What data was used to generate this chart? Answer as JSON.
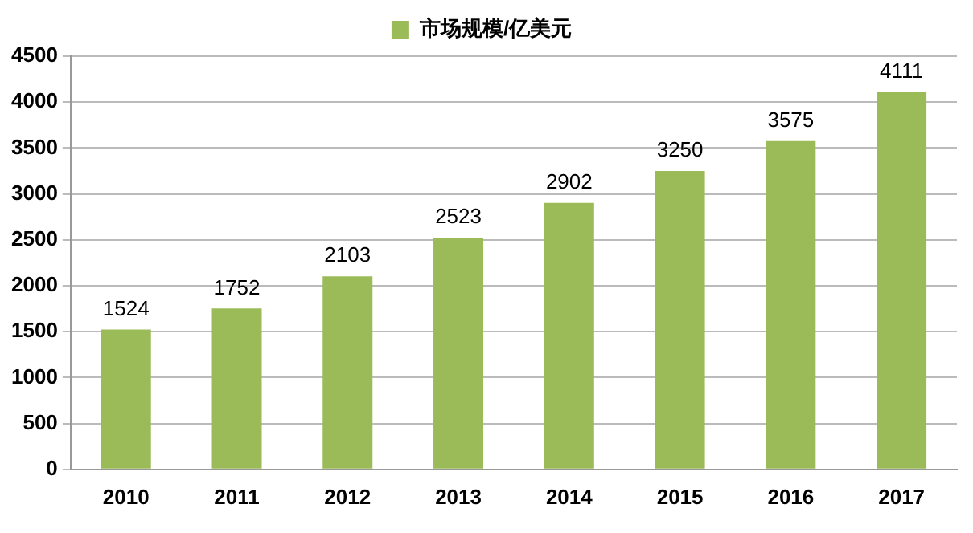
{
  "chart_data": {
    "type": "bar",
    "categories": [
      "2010",
      "2011",
      "2012",
      "2013",
      "2014",
      "2015",
      "2016",
      "2017"
    ],
    "series": [
      {
        "name": "市场规模/亿美元",
        "color": "#9bbb59",
        "values": [
          1524,
          1752,
          2103,
          2523,
          2902,
          3250,
          3575,
          4111
        ]
      }
    ],
    "ylim": [
      0,
      4500
    ],
    "yticks": [
      0,
      500,
      1000,
      1500,
      2000,
      2500,
      3000,
      3500,
      4000,
      4500
    ],
    "grid": "y",
    "legend": "top",
    "data_labels": true
  }
}
